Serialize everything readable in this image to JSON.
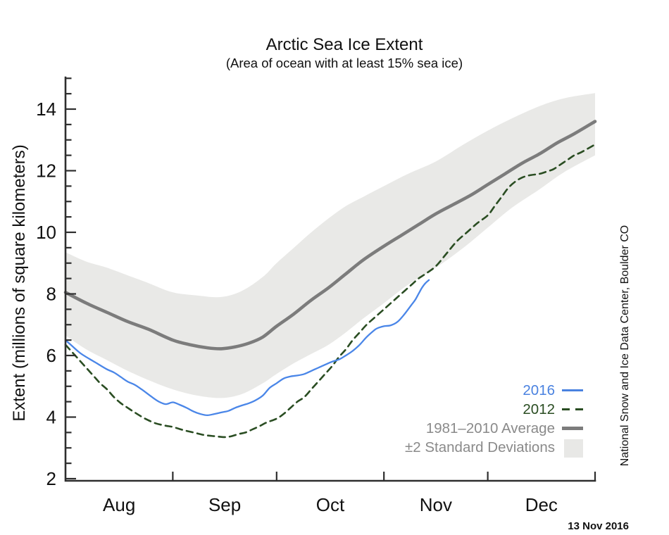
{
  "header": {
    "title": "Arctic Sea Ice Extent",
    "subtitle": "(Area of ocean with at least 15% sea ice)"
  },
  "axes": {
    "y_label": "Extent (millions of square kilometers)",
    "y_major_ticks": [
      2,
      4,
      6,
      8,
      10,
      12,
      14
    ],
    "y_minor_step": 0.5,
    "x_month_labels": [
      "Aug",
      "Sep",
      "Oct",
      "Nov",
      "Dec"
    ]
  },
  "legend": {
    "entries": [
      {
        "label": "2016",
        "swatch": "line",
        "color": "#4a82e0",
        "text_color": "#4a82e0"
      },
      {
        "label": "2012",
        "swatch": "dashes",
        "color": "#2a4d22",
        "text_color": "#2a4d22"
      },
      {
        "label": "1981–2010 Average",
        "swatch": "thick",
        "color": "#7c7c7c",
        "text_color": "#8a8a8a"
      },
      {
        "label": "±2 Standard Deviations",
        "swatch": "box",
        "color": "#e8e8e6",
        "text_color": "#8a8a8a"
      }
    ]
  },
  "annotations": {
    "date_stamp": "13 Nov 2016",
    "credit": "National Snow and Ice Data Center, Boulder CO"
  },
  "chart_data": {
    "type": "line",
    "title": "Arctic Sea Ice Extent",
    "subtitle": "(Area of ocean with at least 15% sea ice)",
    "ylabel": "Extent (millions of square kilometers)",
    "ylim": [
      1.93,
      15.0
    ],
    "y_major_ticks": [
      2,
      4,
      6,
      8,
      10,
      12,
      14
    ],
    "y_minor_step": 0.5,
    "x_unit": "days since Aug 1",
    "x_range_days": 153,
    "x_month_boundary_ticks_days": [
      31,
      61,
      92,
      122,
      153
    ],
    "x_month_labels": [
      {
        "label": "Aug",
        "mid_day": 15.5
      },
      {
        "label": "Sep",
        "mid_day": 46
      },
      {
        "label": "Oct",
        "mid_day": 76.5
      },
      {
        "label": "Nov",
        "mid_day": 107
      },
      {
        "label": "Dec",
        "mid_day": 137.5
      }
    ],
    "band": {
      "name": "±2 Standard Deviations",
      "color": "#e9e9e7",
      "upper": [
        [
          0,
          9.35
        ],
        [
          6,
          9.05
        ],
        [
          12,
          8.85
        ],
        [
          18,
          8.6
        ],
        [
          24,
          8.35
        ],
        [
          31,
          8.05
        ],
        [
          38,
          7.95
        ],
        [
          45,
          7.9
        ],
        [
          51,
          8.1
        ],
        [
          57,
          8.55
        ],
        [
          61,
          9.0
        ],
        [
          66,
          9.5
        ],
        [
          71,
          10.0
        ],
        [
          76,
          10.45
        ],
        [
          81,
          10.85
        ],
        [
          86,
          11.15
        ],
        [
          92,
          11.5
        ],
        [
          99,
          11.9
        ],
        [
          107,
          12.3
        ],
        [
          115,
          12.85
        ],
        [
          122,
          13.3
        ],
        [
          129,
          13.7
        ],
        [
          137,
          14.1
        ],
        [
          144,
          14.35
        ],
        [
          153,
          14.52
        ]
      ],
      "lower": [
        [
          0,
          6.65
        ],
        [
          6,
          6.2
        ],
        [
          12,
          5.85
        ],
        [
          18,
          5.5
        ],
        [
          24,
          5.2
        ],
        [
          31,
          4.9
        ],
        [
          38,
          4.7
        ],
        [
          45,
          4.62
        ],
        [
          51,
          4.75
        ],
        [
          57,
          5.1
        ],
        [
          61,
          5.4
        ],
        [
          66,
          5.75
        ],
        [
          71,
          6.05
        ],
        [
          76,
          6.35
        ],
        [
          81,
          6.75
        ],
        [
          86,
          7.2
        ],
        [
          92,
          7.7
        ],
        [
          99,
          8.3
        ],
        [
          107,
          8.85
        ],
        [
          115,
          9.5
        ],
        [
          122,
          10.15
        ],
        [
          129,
          10.8
        ],
        [
          137,
          11.4
        ],
        [
          144,
          11.95
        ],
        [
          153,
          12.5
        ]
      ]
    },
    "series": [
      {
        "name": "1981-2010 Average",
        "color": "#7c7c7c",
        "style": "solid",
        "width": 4.6,
        "points": [
          [
            0,
            8.05
          ],
          [
            6,
            7.7
          ],
          [
            12,
            7.4
          ],
          [
            18,
            7.1
          ],
          [
            24,
            6.85
          ],
          [
            31,
            6.5
          ],
          [
            36,
            6.35
          ],
          [
            41,
            6.25
          ],
          [
            45,
            6.22
          ],
          [
            49,
            6.28
          ],
          [
            53,
            6.4
          ],
          [
            57,
            6.6
          ],
          [
            61,
            6.95
          ],
          [
            66,
            7.35
          ],
          [
            71,
            7.8
          ],
          [
            76,
            8.2
          ],
          [
            81,
            8.65
          ],
          [
            86,
            9.1
          ],
          [
            92,
            9.55
          ],
          [
            97,
            9.9
          ],
          [
            102,
            10.25
          ],
          [
            107,
            10.6
          ],
          [
            112,
            10.9
          ],
          [
            117,
            11.2
          ],
          [
            122,
            11.55
          ],
          [
            127,
            11.9
          ],
          [
            132,
            12.25
          ],
          [
            137,
            12.55
          ],
          [
            142,
            12.9
          ],
          [
            147,
            13.2
          ],
          [
            153,
            13.6
          ]
        ]
      },
      {
        "name": "2012",
        "color": "#2a4d22",
        "style": "dashed",
        "width": 2.6,
        "points": [
          [
            0,
            6.35
          ],
          [
            2,
            6.1
          ],
          [
            4,
            5.85
          ],
          [
            6,
            5.6
          ],
          [
            8,
            5.35
          ],
          [
            10,
            5.1
          ],
          [
            12,
            4.9
          ],
          [
            14,
            4.65
          ],
          [
            16,
            4.45
          ],
          [
            18,
            4.3
          ],
          [
            20,
            4.15
          ],
          [
            23,
            3.95
          ],
          [
            26,
            3.8
          ],
          [
            29,
            3.72
          ],
          [
            31,
            3.68
          ],
          [
            34,
            3.58
          ],
          [
            37,
            3.5
          ],
          [
            40,
            3.42
          ],
          [
            43,
            3.38
          ],
          [
            46,
            3.35
          ],
          [
            48,
            3.38
          ],
          [
            50,
            3.45
          ],
          [
            52,
            3.5
          ],
          [
            54,
            3.6
          ],
          [
            56,
            3.7
          ],
          [
            58,
            3.82
          ],
          [
            61,
            3.95
          ],
          [
            63,
            4.1
          ],
          [
            65,
            4.3
          ],
          [
            67,
            4.5
          ],
          [
            69,
            4.65
          ],
          [
            71,
            4.9
          ],
          [
            73,
            5.15
          ],
          [
            75,
            5.4
          ],
          [
            77,
            5.65
          ],
          [
            79,
            5.95
          ],
          [
            81,
            6.2
          ],
          [
            83,
            6.5
          ],
          [
            85,
            6.75
          ],
          [
            87,
            7.0
          ],
          [
            89,
            7.2
          ],
          [
            92,
            7.5
          ],
          [
            94,
            7.7
          ],
          [
            96,
            7.9
          ],
          [
            98,
            8.1
          ],
          [
            100,
            8.3
          ],
          [
            102,
            8.5
          ],
          [
            104,
            8.65
          ],
          [
            107,
            8.9
          ],
          [
            110,
            9.3
          ],
          [
            113,
            9.7
          ],
          [
            116,
            10.0
          ],
          [
            119,
            10.3
          ],
          [
            122,
            10.55
          ],
          [
            124,
            10.85
          ],
          [
            126,
            11.15
          ],
          [
            128,
            11.45
          ],
          [
            130,
            11.65
          ],
          [
            132,
            11.78
          ],
          [
            134,
            11.85
          ],
          [
            137,
            11.9
          ],
          [
            139,
            11.97
          ],
          [
            141,
            12.05
          ],
          [
            143,
            12.2
          ],
          [
            145,
            12.35
          ],
          [
            147,
            12.5
          ],
          [
            149,
            12.6
          ],
          [
            153,
            12.85
          ]
        ]
      },
      {
        "name": "2016",
        "color": "#4a86e8",
        "style": "solid",
        "width": 2.3,
        "points": [
          [
            0,
            6.5
          ],
          [
            2,
            6.3
          ],
          [
            4,
            6.1
          ],
          [
            6,
            5.95
          ],
          [
            9,
            5.75
          ],
          [
            12,
            5.55
          ],
          [
            14,
            5.45
          ],
          [
            16,
            5.3
          ],
          [
            18,
            5.15
          ],
          [
            20,
            5.05
          ],
          [
            22,
            4.9
          ],
          [
            25,
            4.65
          ],
          [
            27,
            4.5
          ],
          [
            29,
            4.42
          ],
          [
            31,
            4.48
          ],
          [
            33,
            4.4
          ],
          [
            35,
            4.3
          ],
          [
            37,
            4.18
          ],
          [
            39,
            4.1
          ],
          [
            41,
            4.06
          ],
          [
            43,
            4.1
          ],
          [
            45,
            4.15
          ],
          [
            47,
            4.2
          ],
          [
            49,
            4.3
          ],
          [
            51,
            4.38
          ],
          [
            53,
            4.45
          ],
          [
            55,
            4.55
          ],
          [
            57,
            4.7
          ],
          [
            59,
            4.95
          ],
          [
            61,
            5.1
          ],
          [
            63,
            5.25
          ],
          [
            65,
            5.32
          ],
          [
            67,
            5.35
          ],
          [
            69,
            5.4
          ],
          [
            71,
            5.5
          ],
          [
            73,
            5.6
          ],
          [
            75,
            5.7
          ],
          [
            77,
            5.8
          ],
          [
            79,
            5.87
          ],
          [
            81,
            6.0
          ],
          [
            83,
            6.15
          ],
          [
            85,
            6.35
          ],
          [
            87,
            6.6
          ],
          [
            89,
            6.8
          ],
          [
            90,
            6.88
          ],
          [
            92,
            6.95
          ],
          [
            94,
            6.98
          ],
          [
            96,
            7.1
          ],
          [
            98,
            7.35
          ],
          [
            100,
            7.65
          ],
          [
            101,
            7.8
          ],
          [
            102,
            8.0
          ],
          [
            103,
            8.2
          ],
          [
            104,
            8.35
          ],
          [
            105,
            8.45
          ]
        ]
      }
    ],
    "legend_position": "lower right",
    "grid": false
  }
}
